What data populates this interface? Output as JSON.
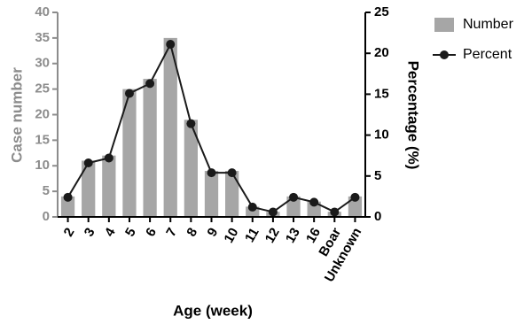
{
  "chart_data": {
    "type": "bar",
    "xlabel": "Age (week)",
    "ylabel": "Case number",
    "y2label": "Percentage (%)",
    "categories": [
      "2",
      "3",
      "4",
      "5",
      "6",
      "7",
      "8",
      "9",
      "10",
      "11",
      "12",
      "13",
      "16",
      "Boar",
      "Unknown"
    ],
    "series": [
      {
        "name": "Number",
        "type": "bar",
        "color": "#a6a6a6",
        "values": [
          4,
          11,
          12,
          25,
          27,
          35,
          19,
          9,
          9,
          2,
          1,
          4,
          3,
          1,
          4
        ]
      },
      {
        "name": "Percent",
        "type": "line",
        "axis": "y2",
        "color": "#1a1a1a",
        "values": [
          2.4,
          6.6,
          7.2,
          15.1,
          16.3,
          21.1,
          11.4,
          5.4,
          5.4,
          1.2,
          0.6,
          2.4,
          1.8,
          0.6,
          2.4
        ]
      }
    ],
    "ylim": [
      0,
      40
    ],
    "yticks": [
      0,
      5,
      10,
      15,
      20,
      25,
      30,
      35,
      40
    ],
    "y2lim": [
      0,
      25
    ],
    "y2ticks": [
      0,
      5,
      10,
      15,
      20,
      25
    ],
    "legend": "upper right"
  }
}
